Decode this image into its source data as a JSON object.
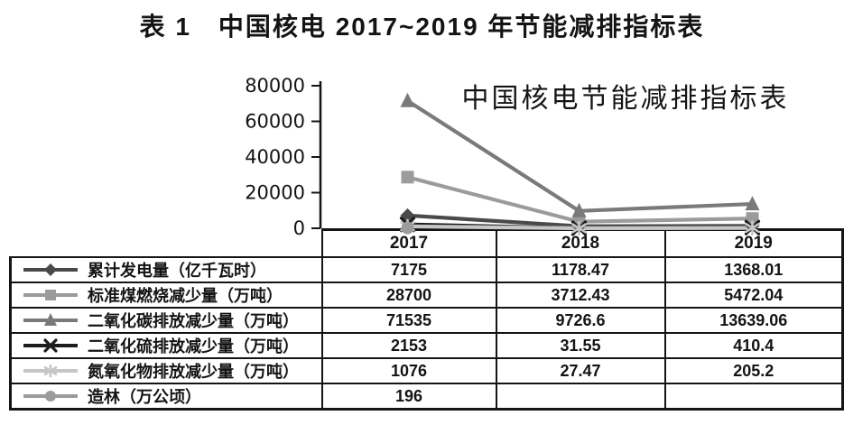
{
  "page_title": "表 1　中国核电 2017~2019 年节能减排指标表",
  "chart_data": {
    "type": "line",
    "title": "中国核电节能减排指标表",
    "categories": [
      "2017",
      "2018",
      "2019"
    ],
    "xlabel": "",
    "ylabel": "",
    "ylim": [
      0,
      80000
    ],
    "yticks": [
      0,
      20000,
      40000,
      60000,
      80000
    ],
    "grid": false,
    "legend_position": "table-rows-left",
    "series": [
      {
        "name": "累计发电量（亿千瓦时）",
        "marker": "diamond",
        "color": "#4a4a4a",
        "values": [
          7175,
          1178.47,
          1368.01
        ]
      },
      {
        "name": "标准煤燃烧减少量（万吨）",
        "marker": "square",
        "color": "#9b9b9b",
        "values": [
          28700,
          3712.43,
          5472.04
        ]
      },
      {
        "name": "二氧化碳排放减少量（万吨）",
        "marker": "triangle",
        "color": "#7a7a7a",
        "values": [
          71535,
          9726.6,
          13639.06
        ]
      },
      {
        "name": "二氧化硫排放减少量（万吨）",
        "marker": "x",
        "color": "#1c1c1c",
        "values": [
          2153,
          31.55,
          410.4
        ]
      },
      {
        "name": "氮氧化物排放减少量（万吨）",
        "marker": "asterisk",
        "color": "#c6c6c6",
        "values": [
          1076,
          27.47,
          205.2
        ]
      },
      {
        "name": "造林（万公顷）",
        "marker": "circle",
        "color": "#9b9b9b",
        "values": [
          196,
          null,
          null
        ]
      }
    ]
  },
  "table": {
    "year_headers": [
      "2017",
      "2018",
      "2019"
    ],
    "rows": [
      {
        "label": "累计发电量（亿千瓦时）",
        "values": [
          "7175",
          "1178.47",
          "1368.01"
        ]
      },
      {
        "label": "标准煤燃烧减少量（万吨）",
        "values": [
          "28700",
          "3712.43",
          "5472.04"
        ]
      },
      {
        "label": "二氧化碳排放减少量（万吨）",
        "values": [
          "71535",
          "9726.6",
          "13639.06"
        ]
      },
      {
        "label": "二氧化硫排放减少量（万吨）",
        "values": [
          "2153",
          "31.55",
          "410.4"
        ]
      },
      {
        "label": "氮氧化物排放减少量（万吨）",
        "values": [
          "1076",
          "27.47",
          "205.2"
        ]
      },
      {
        "label": "造林（万公顷）",
        "values": [
          "196",
          "",
          ""
        ]
      }
    ]
  },
  "colors": {
    "ink": "#141414",
    "background": "#ffffff"
  }
}
